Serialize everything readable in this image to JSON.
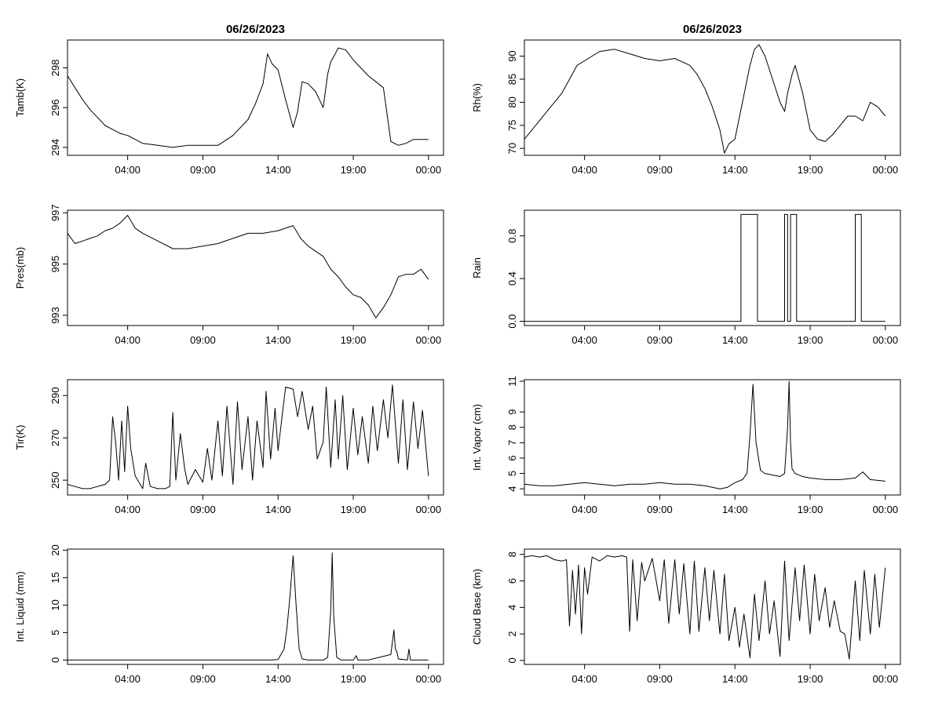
{
  "figure_title_left": "06/26/2023",
  "figure_title_right": "06/26/2023",
  "x_tick_labels": [
    "04:00",
    "09:00",
    "14:00",
    "19:00",
    "00:00"
  ],
  "colors": {
    "line": "#000000",
    "background": "#ffffff",
    "axis": "#000000"
  },
  "chart_data": [
    {
      "id": "tamb",
      "type": "line",
      "column": "left",
      "row": 0,
      "title": "06/26/2023",
      "ylabel": "Tamb(K)",
      "x_unit": "hours since 00:00",
      "xlim": [
        0,
        25
      ],
      "ylim": [
        293.6,
        299.4
      ],
      "yticks": [
        294,
        296,
        298
      ],
      "ytick_labels": [
        "294",
        "296",
        "298"
      ],
      "x": [
        0,
        0.5,
        1,
        1.5,
        2,
        2.5,
        3,
        3.5,
        4,
        4.5,
        5,
        6,
        7,
        8,
        9,
        10,
        11,
        12,
        12.5,
        13,
        13.3,
        13.6,
        14,
        14.5,
        15,
        15.3,
        15.6,
        16,
        16.5,
        17,
        17.3,
        17.5,
        17.8,
        18,
        18.5,
        19,
        19.5,
        20,
        20.5,
        21,
        21.5,
        22,
        22.5,
        23,
        23.5,
        24
      ],
      "y": [
        297.6,
        297.0,
        296.4,
        295.9,
        295.5,
        295.1,
        294.9,
        294.7,
        294.6,
        294.4,
        294.2,
        294.1,
        294.0,
        294.1,
        294.1,
        294.1,
        294.6,
        295.4,
        296.2,
        297.2,
        298.7,
        298.2,
        297.9,
        296.4,
        295.0,
        295.8,
        297.3,
        297.2,
        296.8,
        296.0,
        297.7,
        298.3,
        298.7,
        299.0,
        298.9,
        298.4,
        298.0,
        297.6,
        297.3,
        297.0,
        294.3,
        294.1,
        294.2,
        294.4,
        294.4,
        294.4
      ]
    },
    {
      "id": "rh",
      "type": "line",
      "column": "right",
      "row": 0,
      "title": "06/26/2023",
      "ylabel": "Rh(%)",
      "x_unit": "hours since 00:00",
      "xlim": [
        0,
        25
      ],
      "ylim": [
        68.5,
        93.5
      ],
      "yticks": [
        70,
        75,
        80,
        85,
        90
      ],
      "ytick_labels": [
        "70",
        "75",
        "80",
        "85",
        "90"
      ],
      "x": [
        0,
        0.5,
        1,
        1.5,
        2,
        2.5,
        3,
        3.5,
        4,
        5,
        6,
        7,
        8,
        9,
        10,
        11,
        11.5,
        12,
        12.5,
        13,
        13.3,
        13.6,
        14,
        14.5,
        15,
        15.3,
        15.6,
        16,
        16.5,
        17,
        17.3,
        17.5,
        17.8,
        18,
        18.5,
        19,
        19.5,
        20,
        20.5,
        21,
        21.5,
        22,
        22.5,
        23,
        23.5,
        24
      ],
      "y": [
        72,
        74,
        76,
        78,
        80,
        82,
        85,
        88,
        89,
        91,
        91.5,
        90.5,
        89.5,
        89,
        89.5,
        88,
        86,
        83,
        79,
        74,
        69,
        71,
        72,
        80,
        88,
        91.5,
        92.5,
        90,
        85,
        80,
        78,
        82,
        86,
        88,
        82,
        74,
        72,
        71.5,
        73,
        75,
        77,
        77,
        76,
        80,
        79,
        77
      ]
    },
    {
      "id": "pres",
      "type": "line",
      "column": "left",
      "row": 1,
      "ylabel": "Pres(mb)",
      "x_unit": "hours since 00:00",
      "xlim": [
        0,
        25
      ],
      "ylim": [
        992.6,
        997.1
      ],
      "yticks": [
        993,
        995,
        997
      ],
      "ytick_labels": [
        "993",
        "995",
        "997"
      ],
      "x": [
        0,
        0.5,
        1,
        1.5,
        2,
        2.5,
        3,
        3.5,
        4,
        4.5,
        5,
        6,
        7,
        8,
        9,
        10,
        11,
        12,
        13,
        14,
        15,
        15.5,
        16,
        16.5,
        17,
        17.5,
        18,
        18.5,
        19,
        19.5,
        20,
        20.5,
        21,
        21.5,
        22,
        22.5,
        23,
        23.5,
        24
      ],
      "y": [
        996.2,
        995.8,
        995.9,
        996.0,
        996.1,
        996.3,
        996.4,
        996.6,
        996.9,
        996.4,
        996.2,
        995.9,
        995.6,
        995.6,
        995.7,
        995.8,
        996.0,
        996.2,
        996.2,
        996.3,
        996.5,
        996.0,
        995.7,
        995.5,
        995.3,
        994.8,
        994.5,
        994.1,
        993.8,
        993.7,
        993.4,
        992.9,
        993.3,
        993.8,
        994.5,
        994.6,
        994.6,
        994.8,
        994.4
      ]
    },
    {
      "id": "rain",
      "type": "line",
      "step": true,
      "column": "right",
      "row": 1,
      "ylabel": "Rain",
      "x_unit": "hours since 00:00",
      "xlim": [
        0,
        25
      ],
      "ylim": [
        -0.04,
        1.04
      ],
      "yticks": [
        0.0,
        0.4,
        0.8
      ],
      "ytick_labels": [
        "0.0",
        "0.4",
        "0.8"
      ],
      "x": [
        0,
        14.4,
        14.4,
        15.5,
        15.5,
        17.3,
        17.3,
        17.5,
        17.5,
        17.7,
        17.7,
        18.1,
        18.1,
        22.0,
        22.0,
        22.4,
        22.4,
        24
      ],
      "y": [
        0,
        0,
        1,
        1,
        0,
        0,
        1,
        1,
        0,
        0,
        1,
        1,
        0,
        0,
        1,
        1,
        0,
        0
      ]
    },
    {
      "id": "tir",
      "type": "line",
      "column": "left",
      "row": 2,
      "ylabel": "Tir(K)",
      "x_unit": "hours since 00:00",
      "xlim": [
        0,
        25
      ],
      "ylim": [
        243,
        297.5
      ],
      "yticks": [
        250,
        270,
        290
      ],
      "ytick_labels": [
        "250",
        "270",
        "290"
      ],
      "x": [
        0,
        0.5,
        1,
        1.5,
        2,
        2.5,
        2.8,
        3.0,
        3.2,
        3.4,
        3.6,
        3.8,
        4.0,
        4.2,
        4.5,
        5.0,
        5.2,
        5.5,
        6.0,
        6.5,
        6.8,
        7.0,
        7.2,
        7.5,
        7.8,
        8.0,
        8.5,
        9.0,
        9.3,
        9.6,
        10.0,
        10.3,
        10.6,
        11.0,
        11.3,
        11.6,
        12.0,
        12.3,
        12.6,
        13.0,
        13.2,
        13.5,
        13.8,
        14.0,
        14.5,
        15.0,
        15.3,
        15.6,
        16.0,
        16.3,
        16.6,
        17.0,
        17.2,
        17.5,
        17.8,
        18.0,
        18.3,
        18.6,
        19.0,
        19.3,
        19.6,
        20.0,
        20.3,
        20.6,
        21.0,
        21.3,
        21.6,
        22.0,
        22.3,
        22.6,
        23.0,
        23.3,
        23.6,
        24.0
      ],
      "y": [
        248,
        247,
        246,
        246,
        247,
        248,
        250,
        280,
        268,
        250,
        278,
        254,
        285,
        265,
        252,
        246,
        258,
        247,
        246,
        246,
        247,
        282,
        250,
        272,
        255,
        248,
        255,
        249,
        265,
        250,
        278,
        252,
        285,
        248,
        287,
        255,
        280,
        250,
        278,
        256,
        292,
        260,
        284,
        264,
        294,
        293,
        280,
        292,
        274,
        285,
        260,
        268,
        294,
        256,
        288,
        260,
        290,
        255,
        284,
        262,
        280,
        258,
        285,
        264,
        288,
        270,
        295,
        258,
        288,
        255,
        287,
        265,
        283,
        252
      ]
    },
    {
      "id": "int_vapor",
      "type": "line",
      "column": "right",
      "row": 2,
      "ylabel": "Int. Vapor (cm)",
      "x_unit": "hours since 00:00",
      "xlim": [
        0,
        25
      ],
      "ylim": [
        3.6,
        11.1
      ],
      "yticks": [
        4,
        5,
        6,
        7,
        8,
        9,
        11
      ],
      "ytick_labels": [
        "4",
        "5",
        "6",
        "7",
        "8",
        "9",
        "11"
      ],
      "x": [
        0,
        1,
        2,
        3,
        4,
        5,
        6,
        7,
        8,
        9,
        10,
        11,
        12,
        13,
        13.5,
        14,
        14.5,
        14.8,
        15.0,
        15.2,
        15.4,
        15.7,
        16.0,
        16.5,
        17.0,
        17.3,
        17.5,
        17.6,
        17.7,
        17.8,
        18.0,
        18.5,
        19.0,
        20.0,
        21.0,
        22.0,
        22.5,
        23.0,
        24.0
      ],
      "y": [
        4.3,
        4.2,
        4.2,
        4.3,
        4.4,
        4.3,
        4.2,
        4.3,
        4.3,
        4.4,
        4.3,
        4.3,
        4.2,
        4.0,
        4.1,
        4.4,
        4.6,
        5.0,
        7.5,
        10.8,
        7.0,
        5.2,
        5.0,
        4.9,
        4.8,
        5.0,
        8.0,
        11.0,
        7.0,
        5.3,
        5.0,
        4.8,
        4.7,
        4.6,
        4.6,
        4.7,
        5.1,
        4.6,
        4.5
      ]
    },
    {
      "id": "int_liquid",
      "type": "line",
      "column": "left",
      "row": 3,
      "ylabel": "Int. Liquid (mm)",
      "x_unit": "hours since 00:00",
      "xlim": [
        0,
        25
      ],
      "ylim": [
        -0.8,
        20.2
      ],
      "yticks": [
        0,
        5,
        10,
        15,
        20
      ],
      "ytick_labels": [
        "0",
        "5",
        "10",
        "15",
        "20"
      ],
      "x": [
        0,
        13.5,
        14.0,
        14.4,
        14.6,
        14.8,
        15.0,
        15.2,
        15.4,
        15.6,
        16.0,
        17.0,
        17.3,
        17.5,
        17.6,
        17.7,
        17.9,
        18.2,
        19.0,
        19.2,
        19.3,
        20.0,
        21.5,
        21.7,
        21.8,
        21.9,
        22.0,
        22.6,
        22.7,
        22.8,
        24.0
      ],
      "y": [
        0,
        0,
        0.1,
        2.0,
        6.0,
        12.0,
        19.0,
        10.0,
        2.0,
        0.2,
        0,
        0,
        0.5,
        9.0,
        19.5,
        8.0,
        0.5,
        0,
        0,
        0.8,
        0,
        0,
        1.0,
        5.5,
        2.0,
        1.5,
        0.2,
        0,
        2.0,
        0,
        0
      ]
    },
    {
      "id": "cloud_base",
      "type": "line",
      "column": "right",
      "row": 3,
      "ylabel": "Cloud Base (km)",
      "x_unit": "hours since 00:00",
      "xlim": [
        0,
        25
      ],
      "ylim": [
        -0.3,
        8.4
      ],
      "yticks": [
        0,
        2,
        4,
        6,
        8
      ],
      "ytick_labels": [
        "0",
        "2",
        "4",
        "6",
        "8"
      ],
      "x": [
        0,
        0.5,
        1,
        1.5,
        2,
        2.5,
        2.8,
        3.0,
        3.2,
        3.4,
        3.6,
        3.8,
        4.0,
        4.2,
        4.5,
        5.0,
        5.5,
        6.0,
        6.5,
        6.8,
        7.0,
        7.2,
        7.5,
        7.8,
        8.0,
        8.5,
        9.0,
        9.3,
        9.6,
        10.0,
        10.3,
        10.6,
        11.0,
        11.3,
        11.6,
        12.0,
        12.3,
        12.6,
        13.0,
        13.3,
        13.6,
        14.0,
        14.3,
        14.6,
        15.0,
        15.3,
        15.6,
        16.0,
        16.3,
        16.6,
        17.0,
        17.3,
        17.6,
        18.0,
        18.3,
        18.6,
        19.0,
        19.3,
        19.6,
        20.0,
        20.3,
        20.6,
        21.0,
        21.3,
        21.6,
        22.0,
        22.3,
        22.6,
        23.0,
        23.3,
        23.6,
        24.0
      ],
      "y": [
        7.8,
        7.9,
        7.8,
        7.9,
        7.6,
        7.5,
        7.6,
        2.6,
        6.8,
        3.5,
        7.2,
        2.0,
        7.0,
        5.0,
        7.8,
        7.5,
        7.9,
        7.8,
        7.9,
        7.8,
        2.2,
        7.6,
        3.0,
        7.4,
        6.0,
        7.7,
        4.5,
        7.6,
        2.8,
        7.6,
        3.5,
        7.3,
        2.0,
        7.5,
        2.2,
        7.0,
        3.0,
        6.8,
        2.0,
        6.5,
        1.5,
        4.0,
        1.0,
        3.5,
        0.2,
        5.0,
        1.5,
        6.0,
        2.0,
        4.5,
        0.3,
        7.5,
        1.5,
        7.0,
        3.0,
        7.2,
        2.0,
        6.5,
        3.0,
        5.5,
        2.5,
        4.5,
        2.2,
        2.0,
        0.1,
        6.0,
        1.5,
        6.8,
        2.0,
        6.5,
        2.5,
        7.0
      ]
    }
  ]
}
